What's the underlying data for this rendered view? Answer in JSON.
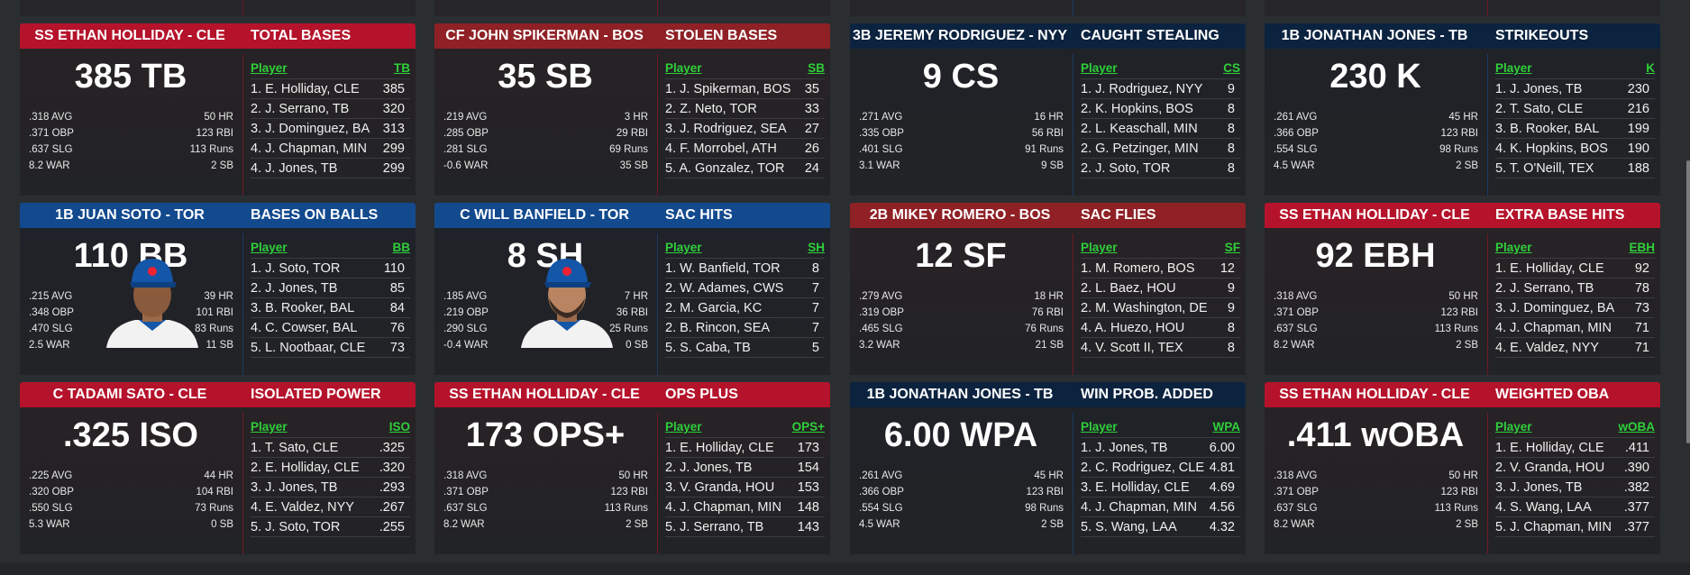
{
  "colors": {
    "cle": "#b5132b",
    "bos": "#8f2126",
    "navy": "#0c2340",
    "tor": "#134a8e",
    "green": "#2fcf3a"
  },
  "table_header_player": "Player",
  "cards": [
    {
      "theme": "cle",
      "player": "SS ETHAN HOLLIDAY - CLE",
      "category": "TOTAL BASES",
      "big": "385 TB",
      "col": "TB",
      "stats": [
        [
          ".318 AVG",
          "50 HR"
        ],
        [
          ".371 OBP",
          "123 RBI"
        ],
        [
          ".637 SLG",
          "113 Runs"
        ],
        [
          "8.2 WAR",
          "2 SB"
        ]
      ],
      "leaders": [
        [
          "1. E. Holliday, CLE",
          "385"
        ],
        [
          "2. J. Serrano, TB",
          "320"
        ],
        [
          "3. J. Dominguez, BA",
          "313"
        ],
        [
          "4. J. Chapman, MIN",
          "299"
        ],
        [
          "4. J. Jones, TB",
          "299"
        ]
      ]
    },
    {
      "theme": "bos",
      "player": "CF JOHN SPIKERMAN - BOS",
      "category": "STOLEN BASES",
      "big": "35 SB",
      "col": "SB",
      "stats": [
        [
          ".219 AVG",
          "3 HR"
        ],
        [
          ".285 OBP",
          "29 RBI"
        ],
        [
          ".281 SLG",
          "69 Runs"
        ],
        [
          "-0.6 WAR",
          "35 SB"
        ]
      ],
      "leaders": [
        [
          "1. J. Spikerman, BOS",
          "35"
        ],
        [
          "2. Z. Neto, TOR",
          "33"
        ],
        [
          "3. J. Rodriguez, SEA",
          "27"
        ],
        [
          "4. F. Morrobel, ATH",
          "26"
        ],
        [
          "5. A. Gonzalez, TOR",
          "24"
        ]
      ]
    },
    {
      "theme": "navy",
      "player": "3B JEREMY RODRIGUEZ - NYY",
      "category": "CAUGHT STEALING",
      "big": "9 CS",
      "col": "CS",
      "stats": [
        [
          ".271 AVG",
          "16 HR"
        ],
        [
          ".335 OBP",
          "56 RBI"
        ],
        [
          ".401 SLG",
          "91 Runs"
        ],
        [
          "3.1 WAR",
          "9 SB"
        ]
      ],
      "leaders": [
        [
          "1. J. Rodriguez, NYY",
          "9"
        ],
        [
          "2. K. Hopkins, BOS",
          "8"
        ],
        [
          "2. L. Keaschall, MIN",
          "8"
        ],
        [
          "2. G. Petzinger, MIN",
          "8"
        ],
        [
          "2. J. Soto, TOR",
          "8"
        ]
      ]
    },
    {
      "theme": "navy",
      "player": "1B JONATHAN JONES - TB",
      "category": "STRIKEOUTS",
      "big": "230 K",
      "col": "K",
      "stats": [
        [
          ".261 AVG",
          "45 HR"
        ],
        [
          ".366 OBP",
          "123 RBI"
        ],
        [
          ".554 SLG",
          "98 Runs"
        ],
        [
          "4.5 WAR",
          "2 SB"
        ]
      ],
      "leaders": [
        [
          "1. J. Jones, TB",
          "230"
        ],
        [
          "2. T. Sato, CLE",
          "216"
        ],
        [
          "3. B. Rooker, BAL",
          "199"
        ],
        [
          "4. K. Hopkins, BOS",
          "190"
        ],
        [
          "5. T. O'Neill, TEX",
          "188"
        ]
      ]
    },
    {
      "theme": "tor",
      "player": "1B JUAN SOTO - TOR",
      "category": "BASES ON BALLS",
      "big": "110 BB",
      "col": "BB",
      "photo": true,
      "stats": [
        [
          ".215 AVG",
          "39 HR"
        ],
        [
          ".348 OBP",
          "101 RBI"
        ],
        [
          ".470 SLG",
          "83 Runs"
        ],
        [
          "2.5 WAR",
          "11 SB"
        ]
      ],
      "leaders": [
        [
          "1. J. Soto, TOR",
          "110"
        ],
        [
          "2. J. Jones, TB",
          "85"
        ],
        [
          "3. B. Rooker, BAL",
          "84"
        ],
        [
          "4. C. Cowser, BAL",
          "76"
        ],
        [
          "5. L. Nootbaar, CLE",
          "73"
        ]
      ]
    },
    {
      "theme": "tor",
      "player": "C WILL BANFIELD - TOR",
      "category": "SAC HITS",
      "big": "8 SH",
      "col": "SH",
      "photo": true,
      "beard": true,
      "stats": [
        [
          ".185 AVG",
          "7 HR"
        ],
        [
          ".219 OBP",
          "36 RBI"
        ],
        [
          ".290 SLG",
          "25 Runs"
        ],
        [
          "-0.4 WAR",
          "0 SB"
        ]
      ],
      "leaders": [
        [
          "1. W. Banfield, TOR",
          "8"
        ],
        [
          "2. W. Adames, CWS",
          "7"
        ],
        [
          "2. M. Garcia, KC",
          "7"
        ],
        [
          "2. B. Rincon, SEA",
          "7"
        ],
        [
          "5. S. Caba, TB",
          "5"
        ]
      ]
    },
    {
      "theme": "bos",
      "player": "2B MIKEY ROMERO - BOS",
      "category": "SAC FLIES",
      "big": "12 SF",
      "col": "SF",
      "stats": [
        [
          ".279 AVG",
          "18 HR"
        ],
        [
          ".319 OBP",
          "76 RBI"
        ],
        [
          ".465 SLG",
          "76 Runs"
        ],
        [
          "3.2 WAR",
          "21 SB"
        ]
      ],
      "leaders": [
        [
          "1. M. Romero, BOS",
          "12"
        ],
        [
          "2. L. Baez, HOU",
          "9"
        ],
        [
          "2. M. Washington, DET",
          "9"
        ],
        [
          "4. A. Huezo, HOU",
          "8"
        ],
        [
          "4. V. Scott II, TEX",
          "8"
        ]
      ]
    },
    {
      "theme": "cle",
      "player": "SS ETHAN HOLLIDAY - CLE",
      "category": "EXTRA BASE HITS",
      "big": "92 EBH",
      "col": "EBH",
      "stats": [
        [
          ".318 AVG",
          "50 HR"
        ],
        [
          ".371 OBP",
          "123 RBI"
        ],
        [
          ".637 SLG",
          "113 Runs"
        ],
        [
          "8.2 WAR",
          "2 SB"
        ]
      ],
      "leaders": [
        [
          "1. E. Holliday, CLE",
          "92"
        ],
        [
          "2. J. Serrano, TB",
          "78"
        ],
        [
          "3. J. Dominguez, BA",
          "73"
        ],
        [
          "4. J. Chapman, MIN",
          "71"
        ],
        [
          "4. E. Valdez, NYY",
          "71"
        ]
      ]
    },
    {
      "theme": "cle",
      "player": "C TADAMI SATO - CLE",
      "category": "ISOLATED POWER",
      "big": ".325 ISO",
      "col": "ISO",
      "stats": [
        [
          ".225 AVG",
          "44 HR"
        ],
        [
          ".320 OBP",
          "104 RBI"
        ],
        [
          ".550 SLG",
          "73 Runs"
        ],
        [
          "5.3 WAR",
          "0 SB"
        ]
      ],
      "leaders": [
        [
          "1. T. Sato, CLE",
          ".325"
        ],
        [
          "2. E. Holliday, CLE",
          ".320"
        ],
        [
          "3. J. Jones, TB",
          ".293"
        ],
        [
          "4. E. Valdez, NYY",
          ".267"
        ],
        [
          "5. J. Soto, TOR",
          ".255"
        ]
      ]
    },
    {
      "theme": "cle",
      "player": "SS ETHAN HOLLIDAY - CLE",
      "category": "OPS PLUS",
      "big": "173 OPS+",
      "col": "OPS+",
      "stats": [
        [
          ".318 AVG",
          "50 HR"
        ],
        [
          ".371 OBP",
          "123 RBI"
        ],
        [
          ".637 SLG",
          "113 Runs"
        ],
        [
          "8.2 WAR",
          "2 SB"
        ]
      ],
      "leaders": [
        [
          "1. E. Holliday, CLE",
          "173"
        ],
        [
          "2. J. Jones, TB",
          "154"
        ],
        [
          "3. V. Granda, HOU",
          "153"
        ],
        [
          "4. J. Chapman, MIN",
          "148"
        ],
        [
          "5. J. Serrano, TB",
          "143"
        ]
      ]
    },
    {
      "theme": "navy",
      "player": "1B JONATHAN JONES - TB",
      "category": "WIN PROB. ADDED",
      "big": "6.00 WPA",
      "col": "WPA",
      "stats": [
        [
          ".261 AVG",
          "45 HR"
        ],
        [
          ".366 OBP",
          "123 RBI"
        ],
        [
          ".554 SLG",
          "98 Runs"
        ],
        [
          "4.5 WAR",
          "2 SB"
        ]
      ],
      "leaders": [
        [
          "1. J. Jones, TB",
          "6.00"
        ],
        [
          "2. C. Rodriguez, CLE",
          "4.81"
        ],
        [
          "3. E. Holliday, CLE",
          "4.69"
        ],
        [
          "4. J. Chapman, MIN",
          "4.56"
        ],
        [
          "5. S. Wang, LAA",
          "4.32"
        ]
      ]
    },
    {
      "theme": "cle",
      "player": "SS ETHAN HOLLIDAY - CLE",
      "category": "WEIGHTED OBA",
      "big": ".411 wOBA",
      "col": "wOBA",
      "stats": [
        [
          ".318 AVG",
          "50 HR"
        ],
        [
          ".371 OBP",
          "123 RBI"
        ],
        [
          ".637 SLG",
          "113 Runs"
        ],
        [
          "8.2 WAR",
          "2 SB"
        ]
      ],
      "leaders": [
        [
          "1. E. Holliday, CLE",
          ".411"
        ],
        [
          "2. V. Granda, HOU",
          ".390"
        ],
        [
          "3. J. Jones, TB",
          ".382"
        ],
        [
          "4. S. Wang, LAA",
          ".377"
        ],
        [
          "5. J. Chapman, MIN",
          ".377"
        ]
      ]
    }
  ]
}
